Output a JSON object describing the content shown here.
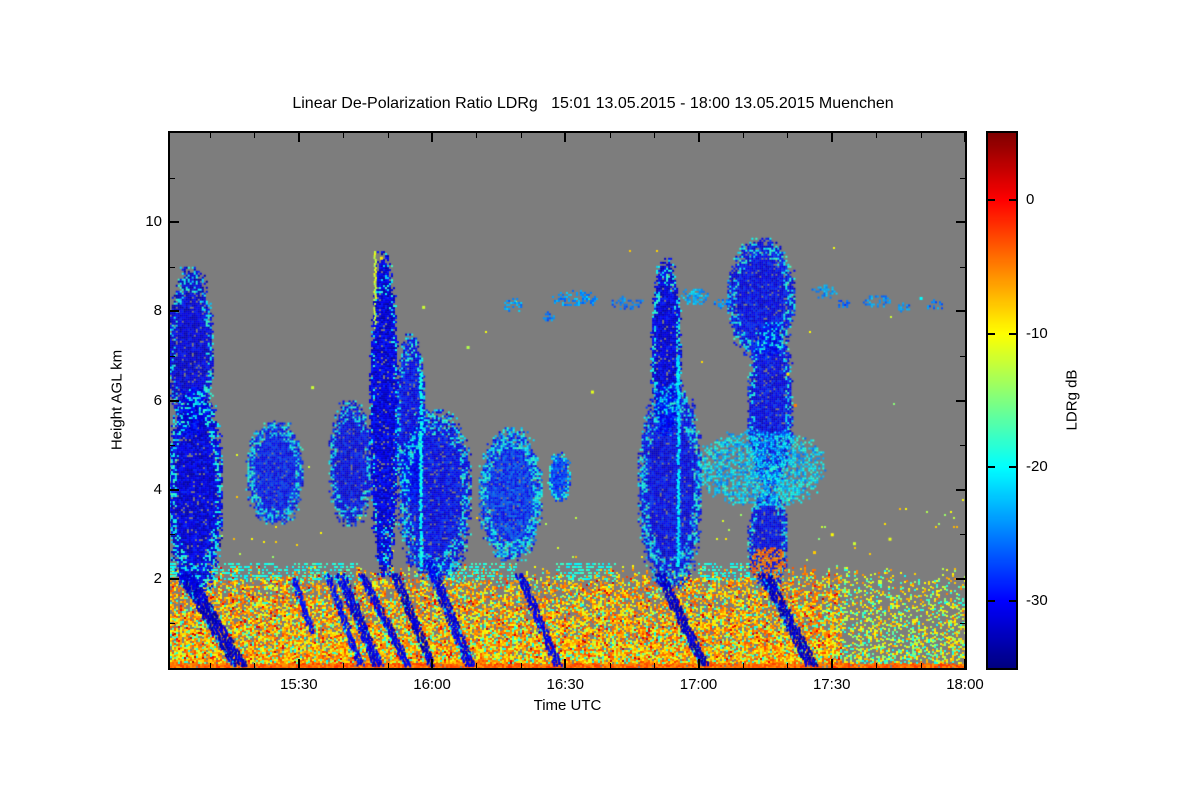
{
  "chart_data": {
    "type": "heatmap",
    "title": "Linear De-Polarization Ratio LDRg   15:01 13.05.2015 - 18:00 13.05.2015 Muenchen",
    "xlabel": "Time UTC",
    "ylabel": "Height AGL km",
    "station": "Muenchen",
    "date": "13.05.2015",
    "time_span": {
      "start": "15:01",
      "end": "18:00"
    },
    "no_data_color": "#7d7d7d",
    "x_axis": {
      "min_minutes": 1,
      "max_minutes": 180,
      "minor_step_minutes": 10,
      "ticks": [
        {
          "label": "15:30",
          "minutes": 30
        },
        {
          "label": "16:00",
          "minutes": 60
        },
        {
          "label": "16:30",
          "minutes": 90
        },
        {
          "label": "17:00",
          "minutes": 120
        },
        {
          "label": "17:30",
          "minutes": 150
        },
        {
          "label": "18:00",
          "minutes": 180
        }
      ]
    },
    "y_axis": {
      "min_km": 0,
      "max_km": 12,
      "minor_step_km": 1,
      "ticks": [
        {
          "label": "10",
          "km": 10
        },
        {
          "label": "8",
          "km": 8
        },
        {
          "label": "6",
          "km": 6
        },
        {
          "label": "4",
          "km": 4
        },
        {
          "label": "2",
          "km": 2
        }
      ]
    },
    "colorbar": {
      "label": "LDRg dB",
      "colormap": "jet",
      "range": [
        -35,
        5
      ],
      "ticks": [
        {
          "label": "0",
          "v": 0
        },
        {
          "label": "-10",
          "v": -10
        },
        {
          "label": "-20",
          "v": -20
        },
        {
          "label": "-30",
          "v": -30
        }
      ]
    },
    "boundary_layer": {
      "top_km": 2.1,
      "top_noise_km": 0.22,
      "sparse_after_minutes": 152,
      "bottom_color": {
        "v": -4,
        "s": 2
      },
      "colors": [
        {
          "v": -7,
          "s": 2.5,
          "w": 0.4
        },
        {
          "v": -4,
          "s": 1.5,
          "w": 0.22
        },
        {
          "v": -12,
          "s": 2,
          "w": 0.16
        },
        {
          "v": -18,
          "s": 2,
          "w": 0.12
        },
        {
          "v": -9,
          "s": 1.5,
          "w": 0.06
        },
        {
          "v": 1,
          "s": 1.5,
          "w": 0.04
        }
      ],
      "sparse_colors": [
        {
          "v": -9,
          "s": 2,
          "w": 0.3
        },
        {
          "v": -13,
          "s": 2,
          "w": 0.3
        },
        {
          "v": -18,
          "s": 2,
          "w": 0.25
        },
        {
          "v": -6,
          "s": 2,
          "w": 0.15
        }
      ],
      "cyan_band_segments": [
        [
          1,
          44
        ],
        [
          59,
          79
        ],
        [
          88,
          101
        ],
        [
          120,
          134
        ]
      ],
      "cyan_band_h": [
        2.0,
        2.35
      ],
      "cyan_band_v": -19
    },
    "blobs": [
      {
        "tc": 5.5,
        "hc": 7.1,
        "rt": 5.0,
        "rh": 1.9,
        "v": -31
      },
      {
        "tc": 6.5,
        "hc": 4.0,
        "rt": 6.2,
        "rh": 2.3,
        "v": -31
      },
      {
        "tc": 24.5,
        "hc": 4.4,
        "rt": 6.5,
        "rh": 1.15,
        "v": -29,
        "f": 0.45
      },
      {
        "tc": 41.5,
        "hc": 4.6,
        "rt": 4.8,
        "rh": 1.4,
        "v": -30
      },
      {
        "tc": 49,
        "hc": 5.7,
        "rt": 3.2,
        "rh": 3.65,
        "v": -31,
        "f": 0.15
      },
      {
        "tc": 55,
        "hc": 5.6,
        "rt": 3.3,
        "rh": 1.9,
        "v": -30
      },
      {
        "tc": 60.5,
        "hc": 3.9,
        "rt": 8.2,
        "rh": 1.9,
        "v": -30,
        "f": 0.35
      },
      {
        "tc": 77.5,
        "hc": 3.9,
        "rt": 7.0,
        "rh": 1.5,
        "v": -28,
        "j": 3,
        "f": 0.5
      },
      {
        "tc": 88.5,
        "hc": 4.3,
        "rt": 2.6,
        "rh": 0.55,
        "v": -27,
        "f": 0.5
      },
      {
        "tc": 112.5,
        "hc": 7.2,
        "rt": 3.4,
        "rh": 2.0,
        "v": -31
      },
      {
        "tc": 113.5,
        "hc": 4.1,
        "rt": 7.2,
        "rh": 2.3,
        "v": -30,
        "f": 0.35
      },
      {
        "tc": 134,
        "hc": 8.3,
        "rt": 7.5,
        "rh": 1.35,
        "v": -30
      },
      {
        "tc": 136,
        "hc": 5.9,
        "rt": 5.0,
        "rh": 1.9,
        "v": -30
      },
      {
        "tc": 135.5,
        "hc": 2.9,
        "rt": 4.5,
        "rh": 1.1,
        "v": -30
      },
      {
        "tc": 134,
        "hc": 4.5,
        "rt": 14.5,
        "rh": 0.85,
        "v": -22,
        "j": 4,
        "d": 0.6
      },
      {
        "tc": 135.8,
        "hc": 2.35,
        "rt": 4.2,
        "rh": 0.4,
        "v": -5,
        "j": 2,
        "d": 0.6,
        "f": 0
      }
    ],
    "streaks": [
      {
        "t1": 4.4,
        "h1": 2.1,
        "t2": 16.8,
        "h2": 0.05,
        "w": 16,
        "v": -32
      },
      {
        "t1": 29,
        "h1": 2.0,
        "t2": 33,
        "h2": 0.8,
        "w": 6,
        "v": -30
      },
      {
        "t1": 36.5,
        "h1": 2.1,
        "t2": 44,
        "h2": 0.05,
        "w": 6,
        "v": -30
      },
      {
        "t1": 39.3,
        "h1": 2.1,
        "t2": 47.8,
        "h2": 0.05,
        "w": 9,
        "v": -31
      },
      {
        "t1": 44.2,
        "h1": 2.1,
        "t2": 54.6,
        "h2": 0.05,
        "w": 8,
        "v": -31
      },
      {
        "t1": 51.7,
        "h1": 2.1,
        "t2": 60,
        "h2": 0.05,
        "w": 8,
        "v": -32
      },
      {
        "t1": 59.1,
        "h1": 2.4,
        "t2": 68.6,
        "h2": 0.05,
        "w": 9,
        "v": -31
      },
      {
        "t1": 79.8,
        "h1": 2.1,
        "t2": 88.4,
        "h2": 0.05,
        "w": 8,
        "v": -31
      },
      {
        "t1": 111.3,
        "h1": 2.1,
        "t2": 121.4,
        "h2": 0.05,
        "w": 10,
        "v": -32
      },
      {
        "t1": 134.9,
        "h1": 2.1,
        "t2": 145.5,
        "h2": 0.05,
        "w": 11,
        "v": -32
      }
    ],
    "vlines": [
      {
        "t": 47.2,
        "h1": 7.6,
        "h2": 9.35,
        "v": -12,
        "w": 2
      },
      {
        "t": 57.5,
        "h1": 2.2,
        "h2": 6.6,
        "v": -20,
        "w": 3
      },
      {
        "t": 115.5,
        "h1": 2.3,
        "h2": 7.0,
        "v": -21,
        "w": 3
      }
    ],
    "high_patches": [
      {
        "tc": 78,
        "hc": 8.15,
        "rt": 2.2,
        "rh": 0.15,
        "v": -24,
        "d": 0.55,
        "f": 0
      },
      {
        "tc": 86,
        "hc": 7.9,
        "rt": 1.5,
        "rh": 0.1,
        "v": -25,
        "d": 0.55,
        "f": 0
      },
      {
        "tc": 92,
        "hc": 8.3,
        "rt": 5,
        "rh": 0.18,
        "v": -24,
        "d": 0.5,
        "f": 0
      },
      {
        "tc": 104,
        "hc": 8.2,
        "rt": 4,
        "rh": 0.15,
        "v": -25,
        "d": 0.5,
        "f": 0
      },
      {
        "tc": 119,
        "hc": 8.35,
        "rt": 3,
        "rh": 0.2,
        "v": -23,
        "d": 0.6,
        "f": 0
      },
      {
        "tc": 125,
        "hc": 8.2,
        "rt": 2,
        "rh": 0.12,
        "v": -25,
        "d": 0.5,
        "f": 0
      },
      {
        "tc": 148,
        "hc": 8.45,
        "rt": 3,
        "rh": 0.15,
        "v": -24,
        "d": 0.5,
        "f": 0
      },
      {
        "tc": 152.5,
        "hc": 8.2,
        "rt": 1.5,
        "rh": 0.1,
        "v": -26,
        "d": 0.5,
        "f": 0
      },
      {
        "tc": 160,
        "hc": 8.25,
        "rt": 3,
        "rh": 0.15,
        "v": -24,
        "d": 0.5,
        "f": 0
      },
      {
        "tc": 166,
        "hc": 8.1,
        "rt": 1.5,
        "rh": 0.1,
        "v": -25,
        "d": 0.5,
        "f": 0
      },
      {
        "tc": 173,
        "hc": 8.15,
        "rt": 2,
        "rh": 0.12,
        "v": -25,
        "d": 0.5,
        "f": 0
      }
    ],
    "specks": [
      {
        "t": 141.7,
        "h": 5.9,
        "v": -5
      },
      {
        "t": 140,
        "h": 6.6,
        "v": -9
      },
      {
        "t": 96,
        "h": 6.2,
        "v": -11
      },
      {
        "t": 48.5,
        "h": 9.2,
        "v": -9
      },
      {
        "t": 58,
        "h": 8.1,
        "v": -12
      },
      {
        "t": 33,
        "h": 6.3,
        "v": -12
      },
      {
        "t": 150,
        "h": 3.0,
        "v": -10
      },
      {
        "t": 155,
        "h": 2.8,
        "v": -12
      },
      {
        "t": 163,
        "h": 2.9,
        "v": -11
      },
      {
        "t": 170,
        "h": 8.3,
        "v": -20
      },
      {
        "t": 146,
        "h": 2.6,
        "v": -8
      },
      {
        "t": 68,
        "h": 7.2,
        "v": -13
      }
    ]
  }
}
